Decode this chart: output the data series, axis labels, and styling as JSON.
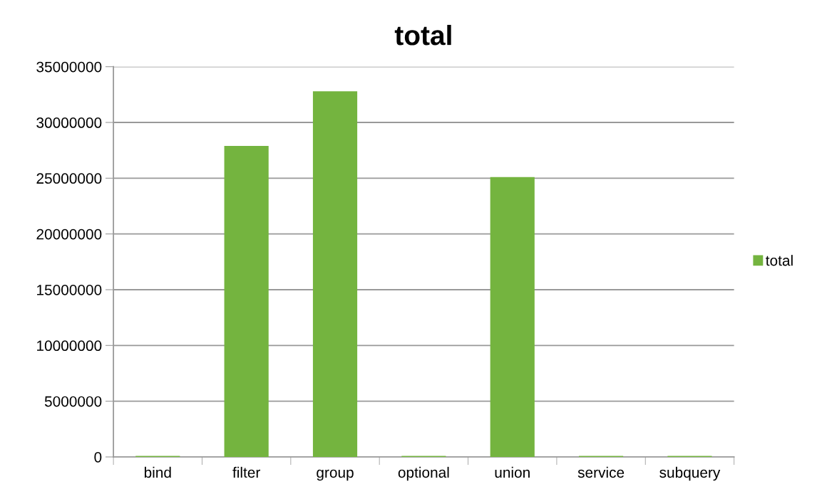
{
  "chart_data": {
    "type": "bar",
    "title": "total",
    "categories": [
      "bind",
      "filter",
      "group",
      "optional",
      "union",
      "service",
      "subquery"
    ],
    "series": [
      {
        "name": "total",
        "color": "#74b43f",
        "values": [
          100000,
          27900000,
          32800000,
          100000,
          25100000,
          100000,
          100000
        ]
      }
    ],
    "ylim": [
      0,
      35000000
    ],
    "yticks": [
      0,
      5000000,
      10000000,
      15000000,
      20000000,
      25000000,
      30000000,
      35000000
    ],
    "grid": "y",
    "legend": "right"
  }
}
